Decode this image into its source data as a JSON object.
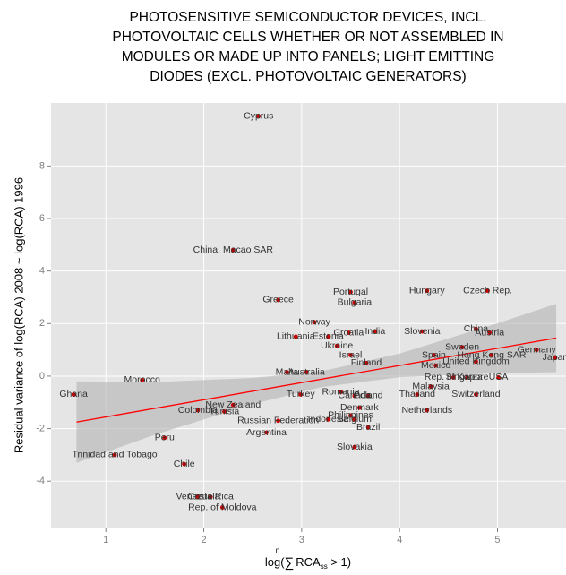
{
  "chart_data": {
    "type": "scatter",
    "title": [
      "PHOTOSENSITIVE SEMICONDUCTOR DEVICES, INCL.",
      "PHOTOVOLTAIC CELLS WHETHER OR NOT ASSEMBLED IN",
      "MODULES OR MADE UP INTO PANELS; LIGHT EMITTING",
      "DIODES (EXCL. PHOTOVOLTAIC GENERATORS)"
    ],
    "ylabel": "Residual variance of log(RCA) 2008 ~ log(RCA) 1996",
    "xlabel": {
      "prefix": "log(",
      "sum": "∑",
      "upper": "n",
      "text": "RCA",
      "sub": "ss",
      "suffix": " > 1)"
    },
    "xlim": [
      0.44,
      5.7
    ],
    "ylim": [
      -5.8,
      10.4
    ],
    "xticks": [
      1,
      2,
      3,
      4,
      5
    ],
    "yticks": [
      -4,
      -2,
      0,
      2,
      4,
      6,
      8
    ],
    "grid": true,
    "color": "#cc0000",
    "line_color": "#ff0000",
    "band_color": "#b3b3b3",
    "points": [
      {
        "label": "Cyprus",
        "x": 2.56,
        "y": 9.9
      },
      {
        "label": "China, Macao SAR",
        "x": 2.3,
        "y": 4.8
      },
      {
        "label": "Greece",
        "x": 2.76,
        "y": 2.9
      },
      {
        "label": "Portugal",
        "x": 3.5,
        "y": 3.2
      },
      {
        "label": "Bulgaria",
        "x": 3.54,
        "y": 2.8
      },
      {
        "label": "Hungary",
        "x": 4.28,
        "y": 3.25
      },
      {
        "label": "Czech Rep.",
        "x": 4.9,
        "y": 3.25
      },
      {
        "label": "Norway",
        "x": 3.13,
        "y": 2.05
      },
      {
        "label": "Lithuania",
        "x": 2.94,
        "y": 1.5
      },
      {
        "label": "Estonia",
        "x": 3.27,
        "y": 1.5
      },
      {
        "label": "Croatia",
        "x": 3.48,
        "y": 1.65
      },
      {
        "label": "India",
        "x": 3.75,
        "y": 1.7
      },
      {
        "label": "Ukraine",
        "x": 3.36,
        "y": 1.15
      },
      {
        "label": "Israel",
        "x": 3.5,
        "y": 0.8
      },
      {
        "label": "Finland",
        "x": 3.66,
        "y": 0.5
      },
      {
        "label": "Slovenia",
        "x": 4.23,
        "y": 1.7
      },
      {
        "label": "China",
        "x": 4.78,
        "y": 1.8
      },
      {
        "label": "Austria",
        "x": 4.92,
        "y": 1.65
      },
      {
        "label": "Sweden",
        "x": 4.64,
        "y": 1.1
      },
      {
        "label": "Spain",
        "x": 4.35,
        "y": 0.8
      },
      {
        "label": "Hong Kong SAR",
        "x": 4.94,
        "y": 0.8
      },
      {
        "label": "Germany",
        "x": 5.4,
        "y": 1.0
      },
      {
        "label": "Japan",
        "x": 5.59,
        "y": 0.7
      },
      {
        "label": "Mexico",
        "x": 4.37,
        "y": 0.4
      },
      {
        "label": "United Kingdom",
        "x": 4.78,
        "y": 0.55
      },
      {
        "label": "Rep. of Korea",
        "x": 4.55,
        "y": -0.05
      },
      {
        "label": "Singapore",
        "x": 4.69,
        "y": -0.05
      },
      {
        "label": "USA",
        "x": 5.01,
        "y": -0.05
      },
      {
        "label": "Malaysia",
        "x": 4.32,
        "y": -0.4
      },
      {
        "label": "Thailand",
        "x": 4.18,
        "y": -0.7
      },
      {
        "label": "Switzerland",
        "x": 4.78,
        "y": -0.7
      },
      {
        "label": "Netherlands",
        "x": 4.28,
        "y": -1.3
      },
      {
        "label": "Malta",
        "x": 2.85,
        "y": 0.15
      },
      {
        "label": "Australia",
        "x": 3.05,
        "y": 0.15
      },
      {
        "label": "Morocco",
        "x": 1.37,
        "y": -0.15
      },
      {
        "label": "Ghana",
        "x": 0.67,
        "y": -0.7
      },
      {
        "label": "Colombia",
        "x": 1.94,
        "y": -1.3
      },
      {
        "label": "Tunisia",
        "x": 2.21,
        "y": -1.35
      },
      {
        "label": "New Zealand",
        "x": 2.3,
        "y": -1.1
      },
      {
        "label": "Turkey",
        "x": 2.99,
        "y": -0.7
      },
      {
        "label": "Romania",
        "x": 3.4,
        "y": -0.6
      },
      {
        "label": "Canada",
        "x": 3.54,
        "y": -0.75
      },
      {
        "label": "Poland",
        "x": 3.68,
        "y": -0.75
      },
      {
        "label": "Denmark",
        "x": 3.59,
        "y": -1.2
      },
      {
        "label": "Philippines",
        "x": 3.5,
        "y": -1.5
      },
      {
        "label": "Indonesia",
        "x": 3.27,
        "y": -1.65
      },
      {
        "label": "Belgium",
        "x": 3.54,
        "y": -1.65
      },
      {
        "label": "Brazil",
        "x": 3.68,
        "y": -1.95
      },
      {
        "label": "Russian Federation",
        "x": 2.76,
        "y": -1.7
      },
      {
        "label": "Argentina",
        "x": 2.64,
        "y": -2.15
      },
      {
        "label": "Slovakia",
        "x": 3.54,
        "y": -2.7
      },
      {
        "label": "Peru",
        "x": 1.6,
        "y": -2.35
      },
      {
        "label": "Trinidad and Tobago",
        "x": 1.09,
        "y": -3.0
      },
      {
        "label": "Chile",
        "x": 1.8,
        "y": -3.35
      },
      {
        "label": "Costa Rica",
        "x": 2.07,
        "y": -4.6
      },
      {
        "label": "Venezuela",
        "x": 1.94,
        "y": -4.6
      },
      {
        "label": "Rep. of Moldova",
        "x": 2.19,
        "y": -5.0
      }
    ],
    "fit": {
      "x": [
        0.7,
        5.6
      ],
      "y": [
        -1.75,
        1.45
      ]
    },
    "band": {
      "x": [
        0.7,
        1.5,
        2.5,
        3.2,
        4,
        5,
        5.6
      ],
      "lower": [
        -3.3,
        -2.23,
        -1.07,
        -0.42,
        -0.04,
        0.11,
        0.15
      ],
      "upper": [
        -0.2,
        -0.23,
        -0.07,
        0.18,
        0.86,
        2.01,
        2.75
      ]
    }
  }
}
